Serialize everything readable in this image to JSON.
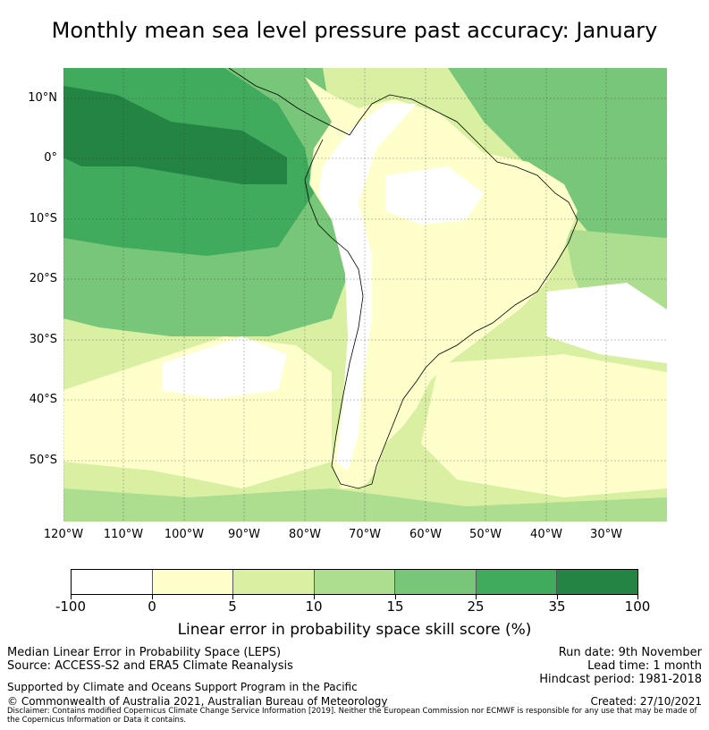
{
  "title": "Monthly mean sea level pressure past accuracy: January",
  "map": {
    "lat_labels": [
      "10°N",
      "0°",
      "10°S",
      "20°S",
      "30°S",
      "40°S",
      "50°S"
    ],
    "lon_labels": [
      "120°W",
      "110°W",
      "100°W",
      "90°W",
      "80°W",
      "70°W",
      "60°W",
      "50°W",
      "40°W",
      "30°W"
    ]
  },
  "colorbar": {
    "label": "Linear error in probability space skill score (%)",
    "ticks": [
      "-100",
      "0",
      "5",
      "10",
      "15",
      "25",
      "35",
      "100"
    ],
    "colors": [
      "#ffffff",
      "#ffffcc",
      "#d9f0a3",
      "#addd8e",
      "#78c679",
      "#41ab5d",
      "#238443"
    ]
  },
  "footer": {
    "line1": "Median Linear Error in Probability Space (LEPS)",
    "line2": "Source: ACCESS-S2 and ERA5 Climate Reanalysis",
    "line3": "Supported by Climate and Oceans Support Program in the Pacific",
    "line4": "© Commonwealth of Australia 2021, Australian Bureau of Meteorology",
    "run_date": "Run date: 9th November",
    "lead_time": "Lead time: 1 month",
    "hindcast": "Hindcast period: 1981-2018",
    "created": "Created: 27/10/2021",
    "disclaimer": "Disclaimer: Contains modified Copernicus Climate Change Service Information [2019]. Neither the European Commission nor ECMWF is responsible for any use that may be made of the Copernicus Information or Data it contains."
  }
}
